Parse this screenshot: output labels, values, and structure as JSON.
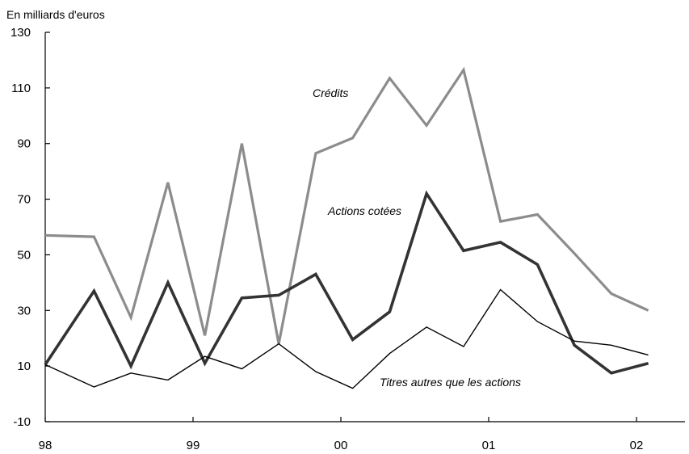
{
  "chart_data": {
    "type": "line",
    "title": "",
    "ylabel": "En milliards d'euros",
    "xlabel": "",
    "ylim": [
      -10,
      130
    ],
    "yticks": [
      "130",
      "110",
      "90",
      "70",
      "50",
      "30",
      "10",
      "-10"
    ],
    "ytick_values": [
      130,
      110,
      90,
      70,
      50,
      30,
      10,
      -10
    ],
    "xlim": [
      1998.0,
      2002.35
    ],
    "xticks": [
      "98",
      "99",
      "00",
      "01",
      "02"
    ],
    "xtick_values": [
      1998,
      1999,
      2000,
      2001,
      2002
    ],
    "x": [
      1998.0,
      1998.33,
      1998.58,
      1998.83,
      1999.08,
      1999.33,
      1999.58,
      1999.83,
      2000.08,
      2000.33,
      2000.58,
      2000.83,
      2001.08,
      2001.33,
      2001.58,
      2001.83,
      2002.08
    ],
    "series": [
      {
        "name": "Crédits",
        "color": "#8c8c8c",
        "values": [
          57,
          56.5,
          27.5,
          76,
          21,
          90,
          18,
          86.5,
          92,
          113.5,
          96.5,
          116.5,
          62,
          64.5,
          50.5,
          36,
          30
        ]
      },
      {
        "name": "Actions cotées",
        "color": "#333333",
        "values": [
          10.5,
          37,
          10,
          40,
          11,
          34.5,
          35.5,
          43,
          19.5,
          29.5,
          72,
          51.5,
          54.5,
          46.5,
          17.5,
          7.5,
          11
        ]
      },
      {
        "name": "Titres autres que les actions",
        "color": "#000000",
        "values": [
          10.5,
          2.5,
          7.5,
          5,
          13.5,
          9,
          18,
          8,
          2,
          14.5,
          24,
          17,
          37.5,
          26,
          19,
          17.5,
          14
        ]
      }
    ],
    "annotations": [
      {
        "text": "Crédits",
        "series": "Crédits"
      },
      {
        "text": "Actions cotées",
        "series": "Actions cotées"
      },
      {
        "text": "Titres autres que les actions",
        "series": "Titres autres que les actions"
      }
    ],
    "grid": false,
    "legend": "none"
  }
}
